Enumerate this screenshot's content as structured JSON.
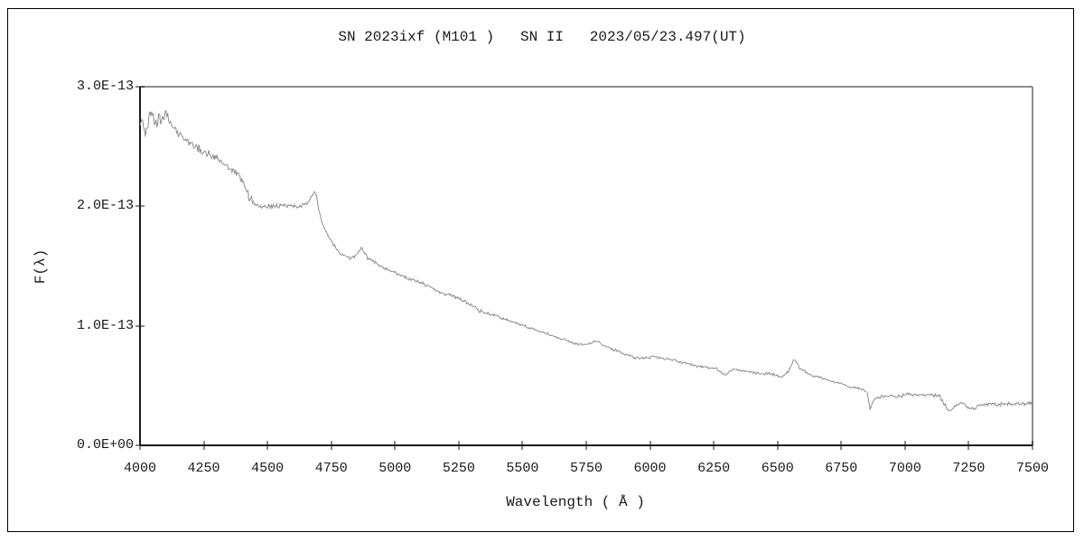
{
  "title": "SN 2023ixf (M101 )   SN II   2023/05/23.497(UT)",
  "chart_data": {
    "type": "line",
    "title": "SN 2023ixf (M101 )   SN II   2023/05/23.497(UT)",
    "xlabel": "Wavelength ( Å )",
    "ylabel": "F(λ)",
    "xlim": [
      4000,
      7500
    ],
    "ylim": [
      0,
      3e-13
    ],
    "y_unit_scale": "1E-13",
    "ylim_scaled": [
      0,
      3.0
    ],
    "grid": false,
    "legend": "none",
    "line_color": "#8f8f8f",
    "axis_color": "#1a1a1a",
    "frame_color": "#8c8c8c",
    "x_ticks": [
      4000,
      4250,
      4500,
      4750,
      5000,
      5250,
      5500,
      5750,
      6000,
      6250,
      6500,
      6750,
      7000,
      7250,
      7500
    ],
    "x_tick_labels": [
      "4000",
      "4250",
      "4500",
      "4750",
      "5000",
      "5250",
      "5500",
      "5750",
      "6000",
      "6250",
      "6500",
      "6750",
      "7000",
      "7250",
      "7500"
    ],
    "y_ticks_scaled": [
      0,
      1,
      2,
      3
    ],
    "y_tick_labels": [
      "0.0E+00",
      "1.0E-13",
      "2.0E-13",
      "3.0E-13"
    ],
    "series": [
      {
        "name": "flux_spectrum",
        "points_unit": "wavelength_angstrom, flux_in_1E-13",
        "points": [
          [
            4000,
            2.68
          ],
          [
            4010,
            2.74
          ],
          [
            4020,
            2.59
          ],
          [
            4032,
            2.69
          ],
          [
            4046,
            2.8
          ],
          [
            4056,
            2.66
          ],
          [
            4068,
            2.72
          ],
          [
            4082,
            2.69
          ],
          [
            4096,
            2.76
          ],
          [
            4110,
            2.74
          ],
          [
            4124,
            2.7
          ],
          [
            4138,
            2.64
          ],
          [
            4155,
            2.6
          ],
          [
            4175,
            2.57
          ],
          [
            4200,
            2.53
          ],
          [
            4225,
            2.49
          ],
          [
            4250,
            2.46
          ],
          [
            4275,
            2.43
          ],
          [
            4300,
            2.4
          ],
          [
            4322,
            2.36
          ],
          [
            4344,
            2.33
          ],
          [
            4365,
            2.3
          ],
          [
            4385,
            2.26
          ],
          [
            4405,
            2.2
          ],
          [
            4418,
            2.13
          ],
          [
            4432,
            2.06
          ],
          [
            4446,
            2.02
          ],
          [
            4462,
            2.01
          ],
          [
            4485,
            2.0
          ],
          [
            4515,
            2.0
          ],
          [
            4545,
            2.0
          ],
          [
            4575,
            2.01
          ],
          [
            4605,
            2.0
          ],
          [
            4632,
            2.0
          ],
          [
            4650,
            2.02
          ],
          [
            4664,
            2.05
          ],
          [
            4675,
            2.09
          ],
          [
            4682,
            2.11
          ],
          [
            4687,
            2.12
          ],
          [
            4693,
            2.08
          ],
          [
            4701,
            1.96
          ],
          [
            4713,
            1.87
          ],
          [
            4726,
            1.8
          ],
          [
            4741,
            1.75
          ],
          [
            4756,
            1.69
          ],
          [
            4771,
            1.64
          ],
          [
            4786,
            1.6
          ],
          [
            4801,
            1.58
          ],
          [
            4816,
            1.57
          ],
          [
            4831,
            1.56
          ],
          [
            4846,
            1.58
          ],
          [
            4858,
            1.62
          ],
          [
            4868,
            1.65
          ],
          [
            4879,
            1.61
          ],
          [
            4892,
            1.57
          ],
          [
            4908,
            1.55
          ],
          [
            4928,
            1.52
          ],
          [
            4950,
            1.49
          ],
          [
            4975,
            1.47
          ],
          [
            5000,
            1.44
          ],
          [
            5030,
            1.42
          ],
          [
            5060,
            1.39
          ],
          [
            5090,
            1.37
          ],
          [
            5120,
            1.34
          ],
          [
            5150,
            1.31
          ],
          [
            5180,
            1.28
          ],
          [
            5210,
            1.26
          ],
          [
            5240,
            1.24
          ],
          [
            5270,
            1.21
          ],
          [
            5300,
            1.17
          ],
          [
            5330,
            1.13
          ],
          [
            5365,
            1.1
          ],
          [
            5400,
            1.08
          ],
          [
            5440,
            1.05
          ],
          [
            5480,
            1.02
          ],
          [
            5520,
            0.99
          ],
          [
            5560,
            0.96
          ],
          [
            5600,
            0.93
          ],
          [
            5640,
            0.9
          ],
          [
            5680,
            0.87
          ],
          [
            5710,
            0.85
          ],
          [
            5732,
            0.84
          ],
          [
            5752,
            0.85
          ],
          [
            5772,
            0.86
          ],
          [
            5790,
            0.87
          ],
          [
            5806,
            0.86
          ],
          [
            5822,
            0.83
          ],
          [
            5846,
            0.81
          ],
          [
            5870,
            0.79
          ],
          [
            5894,
            0.77
          ],
          [
            5915,
            0.75
          ],
          [
            5932,
            0.74
          ],
          [
            5956,
            0.73
          ],
          [
            5984,
            0.73
          ],
          [
            6012,
            0.74
          ],
          [
            6042,
            0.73
          ],
          [
            6072,
            0.72
          ],
          [
            6104,
            0.71
          ],
          [
            6136,
            0.69
          ],
          [
            6168,
            0.67
          ],
          [
            6200,
            0.66
          ],
          [
            6232,
            0.65
          ],
          [
            6262,
            0.64
          ],
          [
            6284,
            0.6
          ],
          [
            6295,
            0.59
          ],
          [
            6310,
            0.62
          ],
          [
            6340,
            0.63
          ],
          [
            6372,
            0.62
          ],
          [
            6404,
            0.61
          ],
          [
            6434,
            0.6
          ],
          [
            6464,
            0.6
          ],
          [
            6492,
            0.59
          ],
          [
            6516,
            0.57
          ],
          [
            6536,
            0.6
          ],
          [
            6551,
            0.65
          ],
          [
            6564,
            0.72
          ],
          [
            6573,
            0.7
          ],
          [
            6586,
            0.65
          ],
          [
            6600,
            0.63
          ],
          [
            6620,
            0.6
          ],
          [
            6642,
            0.58
          ],
          [
            6666,
            0.57
          ],
          [
            6692,
            0.55
          ],
          [
            6720,
            0.53
          ],
          [
            6750,
            0.52
          ],
          [
            6780,
            0.49
          ],
          [
            6810,
            0.48
          ],
          [
            6838,
            0.46
          ],
          [
            6852,
            0.44
          ],
          [
            6858,
            0.36
          ],
          [
            6864,
            0.3
          ],
          [
            6872,
            0.36
          ],
          [
            6882,
            0.39
          ],
          [
            6896,
            0.4
          ],
          [
            6916,
            0.41
          ],
          [
            6940,
            0.42
          ],
          [
            6964,
            0.41
          ],
          [
            6990,
            0.42
          ],
          [
            7014,
            0.43
          ],
          [
            7040,
            0.42
          ],
          [
            7064,
            0.42
          ],
          [
            7090,
            0.42
          ],
          [
            7114,
            0.42
          ],
          [
            7136,
            0.41
          ],
          [
            7152,
            0.35
          ],
          [
            7166,
            0.3
          ],
          [
            7178,
            0.29
          ],
          [
            7192,
            0.32
          ],
          [
            7206,
            0.34
          ],
          [
            7218,
            0.36
          ],
          [
            7232,
            0.34
          ],
          [
            7246,
            0.32
          ],
          [
            7258,
            0.31
          ],
          [
            7272,
            0.31
          ],
          [
            7286,
            0.33
          ],
          [
            7300,
            0.34
          ],
          [
            7330,
            0.35
          ],
          [
            7360,
            0.34
          ],
          [
            7390,
            0.35
          ],
          [
            7420,
            0.34
          ],
          [
            7452,
            0.35
          ],
          [
            7500,
            0.35
          ]
        ]
      }
    ],
    "noise_regions": [
      {
        "from": 4000,
        "to": 4135,
        "amp": 0.05
      },
      {
        "from": 4135,
        "to": 4440,
        "amp": 0.024
      },
      {
        "from": 4440,
        "to": 4660,
        "amp": 0.013
      },
      {
        "from": 4660,
        "to": 4700,
        "amp": 0.007
      },
      {
        "from": 4700,
        "to": 5350,
        "amp": 0.01
      },
      {
        "from": 5350,
        "to": 6520,
        "amp": 0.008
      },
      {
        "from": 6520,
        "to": 6900,
        "amp": 0.006
      },
      {
        "from": 6900,
        "to": 7500,
        "amp": 0.011
      }
    ]
  }
}
